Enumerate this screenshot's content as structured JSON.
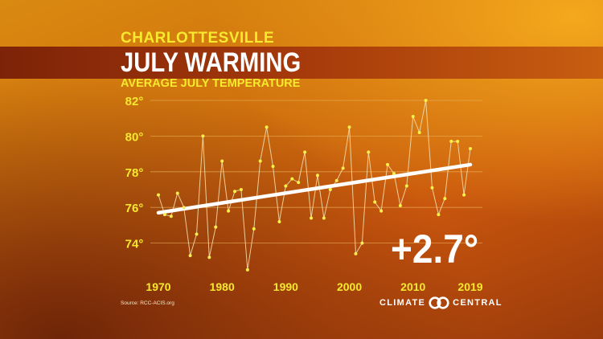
{
  "header": {
    "location": "CHARLOTTESVILLE",
    "title": "JULY WARMING",
    "subtitle": "AVERAGE JULY TEMPERATURE"
  },
  "annotation": {
    "change": "+2.7°"
  },
  "footer": {
    "source": "Source: RCC-ACIS.org",
    "brand_left": "CLIMATE",
    "brand_right": "CENTRAL"
  },
  "colors": {
    "accent_yellow": "#f7e92e",
    "series_line": "#f3dca8",
    "marker": "#f7f04a",
    "trend": "#ffffff",
    "grid": "#e8b35a"
  },
  "chart_data": {
    "type": "line",
    "title": "AVERAGE JULY TEMPERATURE",
    "xlabel": "",
    "ylabel": "",
    "xlim": [
      1970,
      2019
    ],
    "ylim": [
      72,
      82
    ],
    "grid": true,
    "x_ticks": [
      "1970",
      "1980",
      "1990",
      "2000",
      "2010",
      "2019"
    ],
    "y_ticks": [
      "82°",
      "80°",
      "78°",
      "76°",
      "74°"
    ],
    "y_tick_values": [
      82,
      80,
      78,
      76,
      74
    ],
    "series": [
      {
        "x": [
          1970,
          1971,
          1972,
          1973,
          1974,
          1975,
          1976,
          1977,
          1978,
          1979,
          1980,
          1981,
          1982,
          1983,
          1984,
          1985,
          1986,
          1987,
          1988,
          1989,
          1990,
          1991,
          1992,
          1993,
          1994,
          1995,
          1996,
          1997,
          1998,
          1999,
          2000,
          2001,
          2002,
          2003,
          2004,
          2005,
          2006,
          2007,
          2008,
          2009,
          2010,
          2011,
          2012,
          2013,
          2014,
          2015,
          2016,
          2017,
          2018,
          2019
        ],
        "values": [
          76.7,
          75.6,
          75.5,
          76.8,
          76.0,
          73.3,
          74.5,
          80.0,
          73.2,
          74.9,
          78.6,
          75.8,
          76.9,
          77.0,
          72.5,
          74.8,
          78.6,
          80.5,
          78.3,
          75.2,
          77.2,
          77.6,
          77.4,
          79.1,
          75.4,
          77.8,
          75.4,
          77.0,
          77.5,
          78.2,
          80.5,
          73.4,
          74.0,
          79.1,
          76.3,
          75.8,
          78.4,
          77.9,
          76.1,
          77.2,
          81.1,
          80.2,
          82.0,
          77.1,
          75.6,
          76.5,
          79.7,
          79.7,
          76.7,
          79.3
        ]
      }
    ],
    "trend": {
      "x": [
        1970,
        2019
      ],
      "values": [
        75.7,
        78.4
      ]
    }
  }
}
